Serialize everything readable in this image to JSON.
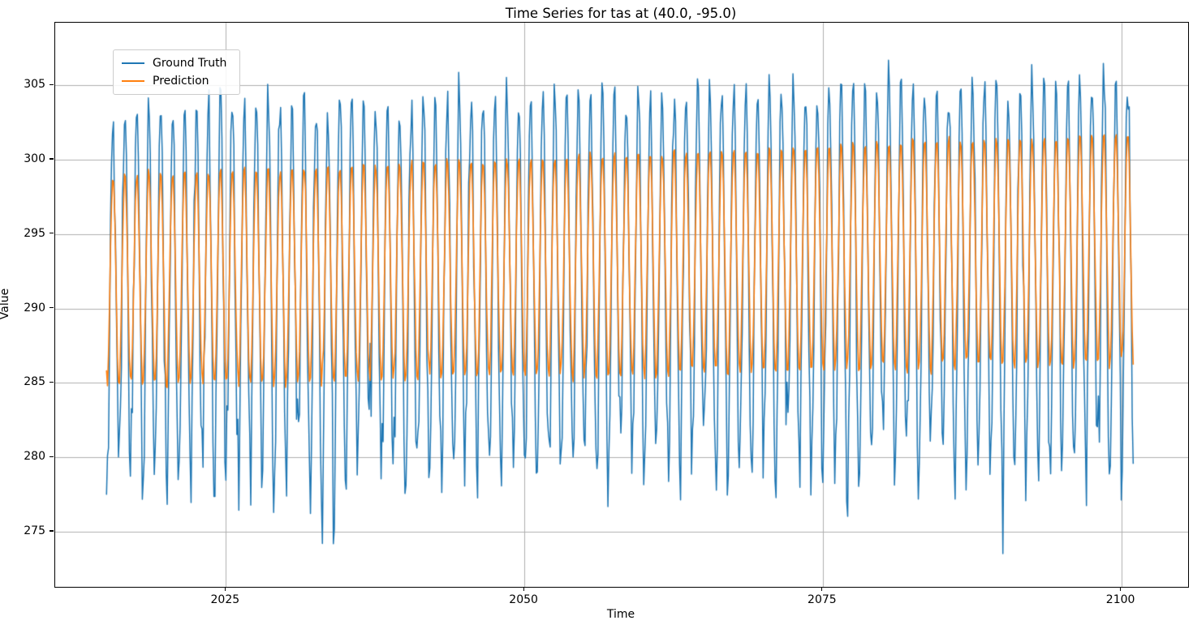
{
  "chart_data": {
    "type": "line",
    "title": "Time Series for tas at (40.0, -95.0)",
    "xlabel": "Time",
    "ylabel": "Value",
    "xlim": [
      2010.7,
      2105.6
    ],
    "ylim": [
      271.3,
      309.2
    ],
    "x_ticks": [
      "2025",
      "2050",
      "2075",
      "2100"
    ],
    "x_tick_values": [
      2025,
      2050,
      2075,
      2100
    ],
    "y_ticks": [
      "275",
      "280",
      "285",
      "290",
      "295",
      "300",
      "305"
    ],
    "y_tick_values": [
      275,
      280,
      285,
      290,
      295,
      300,
      305
    ],
    "grid": true,
    "grid_color": "#b0b0b0",
    "background_color": "#ffffff",
    "spine_color": "#000000",
    "legend": {
      "position": "upper-left",
      "entries": [
        "Ground Truth",
        "Prediction"
      ]
    },
    "series": [
      {
        "name": "Ground Truth",
        "color": "#1f77b4",
        "line_width": 1.5,
        "start_year": 2015.0,
        "end_year": 2101.0,
        "samples_per_year": 12,
        "coldest_month_fraction": 0.04,
        "seasonal_envelope": {
          "winter_min_start": 278.9,
          "winter_min_end": 279.9,
          "summer_max_start": 303.5,
          "summer_max_end": 305.3
        },
        "noise_sigma_summer": 0.75,
        "noise_sigma_winter": 1.9,
        "extreme_dip_probability": 0.16,
        "extreme_dip_max_depth": 4.6,
        "observed_extremes": {
          "max": 307.4,
          "min": 273.0
        },
        "seed": 42
      },
      {
        "name": "Prediction",
        "color": "#ff7f0e",
        "line_width": 1.6,
        "start_year": 2015.0,
        "end_year": 2101.0,
        "samples_per_year": 12,
        "coldest_month_fraction": 0.04,
        "seasonal_envelope": {
          "winter_min_start": 284.8,
          "winter_min_end": 286.3,
          "summer_max_start": 299.0,
          "summer_max_end": 301.9
        },
        "noise_sigma_summer": 0.15,
        "noise_sigma_winter": 0.3,
        "extreme_dip_probability": 0,
        "extreme_dip_max_depth": 0,
        "observed_extremes": {
          "max": 302.0,
          "min": 284.3
        },
        "seed": 7
      }
    ]
  }
}
